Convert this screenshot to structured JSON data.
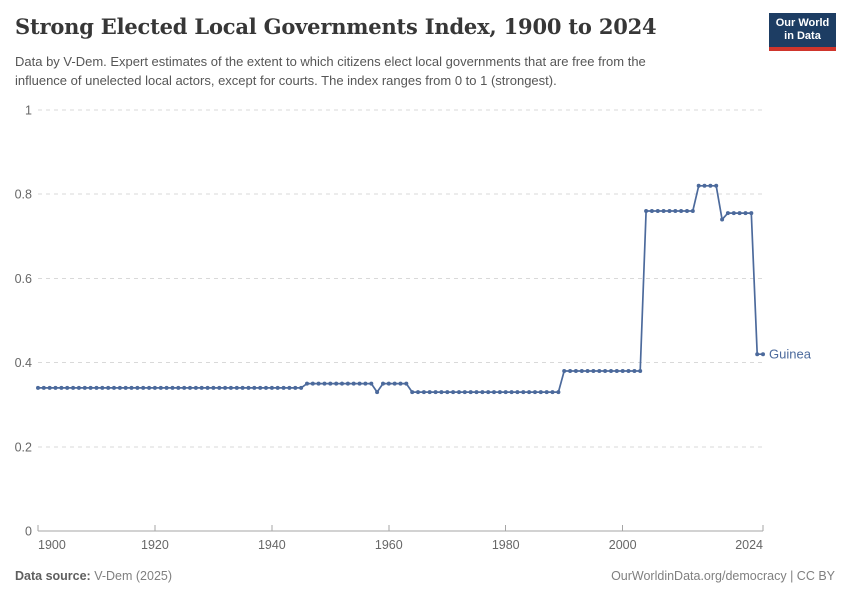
{
  "header": {
    "title": "Strong Elected Local Governments Index, 1900 to 2024",
    "subtitle_lines": [
      "Data by V-Dem. Expert estimates of the extent to which citizens elect local governments that are free from the",
      "influence of unelected local actors, except for courts. The index ranges from 0 to 1 (strongest)."
    ],
    "logo": {
      "line1": "Our World",
      "line2": "in Data",
      "bg_color": "#1d3d63",
      "stripe_color": "#cf352c"
    }
  },
  "chart_data": {
    "type": "line",
    "title": "Strong Elected Local Governments Index, 1900 to 2024",
    "xlabel": "",
    "ylabel": "",
    "xlim": [
      1900,
      2024
    ],
    "ylim": [
      0,
      1
    ],
    "x_ticks": [
      1900,
      1920,
      1940,
      1960,
      1980,
      2000,
      2024
    ],
    "y_ticks": [
      0,
      0.2,
      0.4,
      0.6,
      0.8,
      1
    ],
    "grid": "horizontal-dashed",
    "marker": "circle",
    "axis_color": "#a5a5a5",
    "grid_color": "#d9d9d9",
    "series": [
      {
        "name": "Guinea",
        "color": "#4c6a9c",
        "year_start": 1900,
        "year_end": 2024,
        "values": [
          0.34,
          0.34,
          0.34,
          0.34,
          0.34,
          0.34,
          0.34,
          0.34,
          0.34,
          0.34,
          0.34,
          0.34,
          0.34,
          0.34,
          0.34,
          0.34,
          0.34,
          0.34,
          0.34,
          0.34,
          0.34,
          0.34,
          0.34,
          0.34,
          0.34,
          0.34,
          0.34,
          0.34,
          0.34,
          0.34,
          0.34,
          0.34,
          0.34,
          0.34,
          0.34,
          0.34,
          0.34,
          0.34,
          0.34,
          0.34,
          0.34,
          0.34,
          0.34,
          0.34,
          0.34,
          0.34,
          0.35,
          0.35,
          0.35,
          0.35,
          0.35,
          0.35,
          0.35,
          0.35,
          0.35,
          0.35,
          0.35,
          0.35,
          0.33,
          0.35,
          0.35,
          0.35,
          0.35,
          0.35,
          0.33,
          0.33,
          0.33,
          0.33,
          0.33,
          0.33,
          0.33,
          0.33,
          0.33,
          0.33,
          0.33,
          0.33,
          0.33,
          0.33,
          0.33,
          0.33,
          0.33,
          0.33,
          0.33,
          0.33,
          0.33,
          0.33,
          0.33,
          0.33,
          0.33,
          0.33,
          0.38,
          0.38,
          0.38,
          0.38,
          0.38,
          0.38,
          0.38,
          0.38,
          0.38,
          0.38,
          0.38,
          0.38,
          0.38,
          0.38,
          0.76,
          0.76,
          0.76,
          0.76,
          0.76,
          0.76,
          0.76,
          0.76,
          0.76,
          0.82,
          0.82,
          0.82,
          0.82,
          0.74,
          0.755,
          0.755,
          0.755,
          0.755,
          0.755,
          0.42,
          0.42
        ]
      }
    ]
  },
  "footer": {
    "source_label": "Data source:",
    "source_value": " V-Dem (2025)",
    "right": "OurWorldinData.org/democracy | CC BY"
  }
}
